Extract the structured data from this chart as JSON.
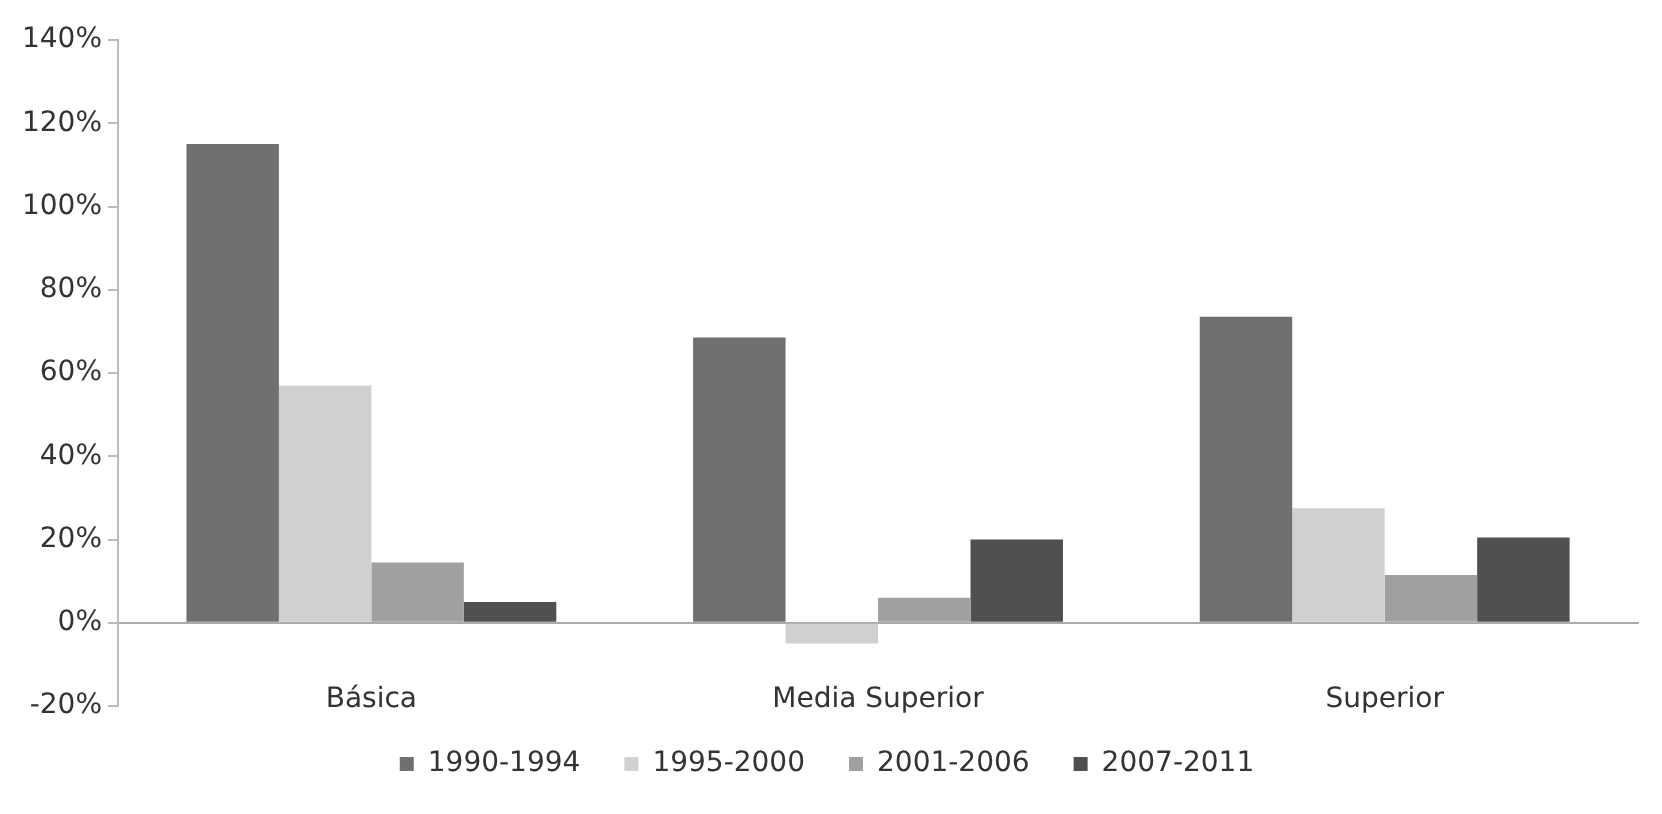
{
  "chart_data": {
    "type": "bar",
    "categories": [
      "Básica",
      "Media Superior",
      "Superior"
    ],
    "series": [
      {
        "name": "1990-1994",
        "color": "#707070",
        "values": [
          115,
          68.5,
          73.5
        ]
      },
      {
        "name": "1995-2000",
        "color": "#d0d0d0",
        "values": [
          57,
          -5,
          27.5
        ]
      },
      {
        "name": "2001-2006",
        "color": "#a0a0a0",
        "values": [
          14.5,
          6,
          11.5
        ]
      },
      {
        "name": "2007-2011",
        "color": "#505050",
        "values": [
          5,
          20,
          20.5
        ]
      }
    ],
    "ylim": [
      -20,
      140
    ],
    "yticks": [
      {
        "value": -20,
        "label": "-20%"
      },
      {
        "value": 0,
        "label": "0%"
      },
      {
        "value": 20,
        "label": "20%"
      },
      {
        "value": 40,
        "label": "40%"
      },
      {
        "value": 60,
        "label": "60%"
      },
      {
        "value": 80,
        "label": "80%"
      },
      {
        "value": 100,
        "label": "100%"
      },
      {
        "value": 120,
        "label": "120%"
      },
      {
        "value": 140,
        "label": "140%"
      }
    ],
    "grid": false,
    "legend": "bottom"
  }
}
